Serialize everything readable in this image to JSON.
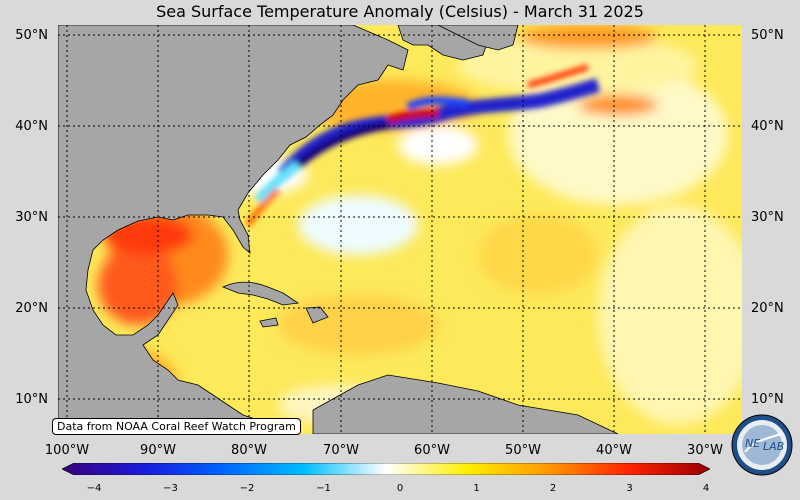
{
  "title": "Sea Surface Temperature Anomaly (Celsius) - March 31 2025",
  "credit": "Data from NOAA Coral Reef Watch Program",
  "logo": {
    "text": "NESDIS LAB",
    "label_left": "NE",
    "label_right": "LAB"
  },
  "lat_labels": [
    "50°N",
    "40°N",
    "30°N",
    "20°N",
    "10°N"
  ],
  "lon_labels": [
    "100°W",
    "90°W",
    "80°W",
    "70°W",
    "60°W",
    "50°W",
    "40°W",
    "30°W"
  ],
  "colorbar": {
    "min": -4,
    "max": 4,
    "ticks": [
      "−4",
      "−3",
      "−2",
      "−1",
      "0",
      "1",
      "2",
      "3",
      "4"
    ],
    "colors": [
      "#3b007a",
      "#1a1ad9",
      "#0066ff",
      "#00bfff",
      "#ffffff",
      "#ffee00",
      "#ff9900",
      "#ff2200",
      "#990000"
    ]
  }
}
